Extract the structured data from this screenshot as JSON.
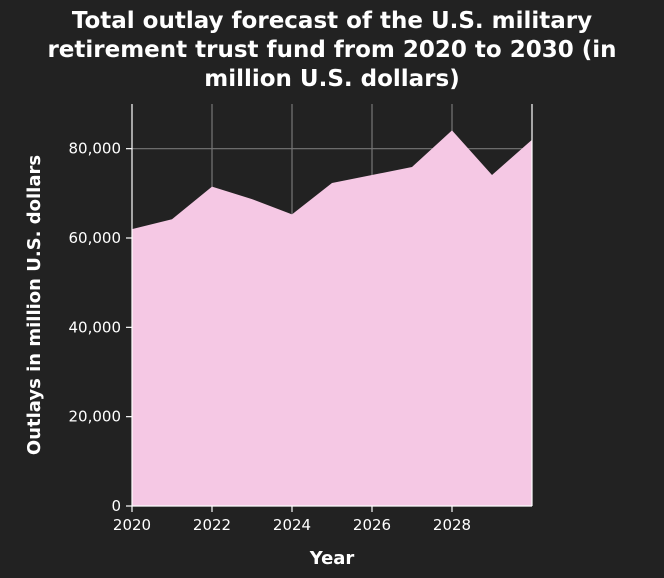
{
  "chart_data": {
    "type": "area",
    "title_lines": [
      "Total outlay forecast of the U.S. military",
      "retirement trust fund from 2020 to 2030 (in",
      "million U.S. dollars)"
    ],
    "xlabel": "Year",
    "ylabel": "Outlays in million U.S. dollars",
    "x": [
      2020,
      2021,
      2022,
      2023,
      2024,
      2025,
      2026,
      2027,
      2028,
      2029,
      2030
    ],
    "values": [
      62000,
      64200,
      71500,
      68700,
      65300,
      72300,
      74100,
      75900,
      84100,
      74100,
      82000
    ],
    "xlim": [
      2020,
      2030
    ],
    "ylim": [
      0,
      90000
    ],
    "x_ticks": [
      2020,
      2022,
      2024,
      2026,
      2028
    ],
    "x_tick_labels": [
      "2020",
      "2022",
      "2024",
      "2026",
      "2028"
    ],
    "y_ticks": [
      0,
      20000,
      40000,
      60000,
      80000
    ],
    "y_tick_labels": [
      "0",
      "20,000",
      "40,000",
      "60,000",
      "80,000"
    ],
    "grid": true,
    "colors": {
      "background": "#222222",
      "fill": "#f5c8e4",
      "grid": "#777777",
      "text": "#ffffff"
    }
  }
}
